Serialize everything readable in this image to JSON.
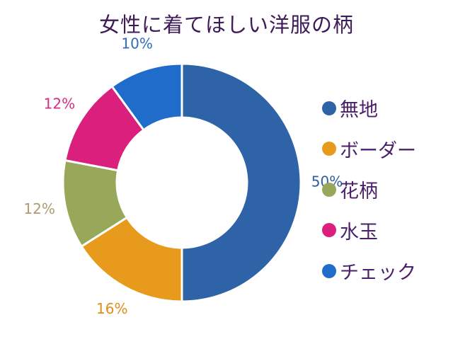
{
  "chart_data": {
    "type": "pie",
    "variant": "donut",
    "title": "女性に着てほしい洋服の柄",
    "categories": [
      "無地",
      "ボーダー",
      "花柄",
      "水玉",
      "チェック"
    ],
    "values": [
      50,
      16,
      12,
      12,
      10
    ],
    "value_labels": [
      "50%",
      "16%",
      "12%",
      "12%",
      "10%"
    ],
    "colors": [
      "#2e63a8",
      "#e89a1c",
      "#97a85a",
      "#db1f7d",
      "#1f6ccb"
    ],
    "label_colors": [
      "#2f5fa3",
      "#e08d1a",
      "#b09a70",
      "#d92a86",
      "#2f6cc0"
    ],
    "legend_position": "right",
    "start": "top, clockwise"
  }
}
